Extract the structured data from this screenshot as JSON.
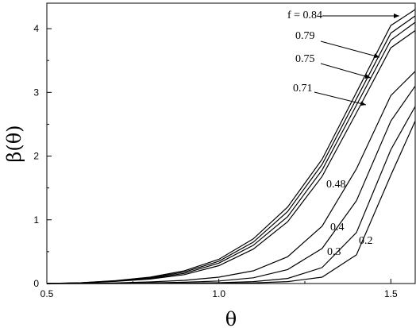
{
  "chart_data": {
    "type": "line",
    "title": "",
    "xlabel": "θ",
    "ylabel": "β(θ)",
    "xlim": [
      0.5,
      1.5708
    ],
    "ylim": [
      0,
      4.4
    ],
    "xticks": [
      0.5,
      1.0,
      1.5
    ],
    "xtick_labels": [
      "0.5",
      "1.0",
      "1.5"
    ],
    "yticks": [
      0,
      1,
      2,
      3,
      4
    ],
    "ytick_labels": [
      "0",
      "1",
      "2",
      "3",
      "4"
    ],
    "grid": false,
    "legend": "none",
    "series": [
      {
        "name": "f = 0.84",
        "x": [
          0.5,
          0.6,
          0.7,
          0.8,
          0.9,
          1.0,
          1.1,
          1.2,
          1.3,
          1.4,
          1.5,
          1.5708
        ],
        "values": [
          0.0,
          0.012,
          0.045,
          0.1,
          0.2,
          0.38,
          0.7,
          1.2,
          1.95,
          3.0,
          4.05,
          4.3
        ]
      },
      {
        "name": "0.79",
        "x": [
          0.5,
          0.6,
          0.7,
          0.8,
          0.9,
          1.0,
          1.1,
          1.2,
          1.3,
          1.4,
          1.5,
          1.5708
        ],
        "values": [
          0.0,
          0.011,
          0.042,
          0.09,
          0.18,
          0.35,
          0.65,
          1.13,
          1.87,
          2.9,
          3.93,
          4.2
        ]
      },
      {
        "name": "0.75",
        "x": [
          0.5,
          0.6,
          0.7,
          0.8,
          0.9,
          1.0,
          1.1,
          1.2,
          1.3,
          1.4,
          1.5,
          1.5708
        ],
        "values": [
          0.0,
          0.01,
          0.038,
          0.08,
          0.16,
          0.32,
          0.6,
          1.05,
          1.78,
          2.8,
          3.82,
          4.1
        ]
      },
      {
        "name": "0.71",
        "x": [
          0.5,
          0.6,
          0.7,
          0.8,
          0.9,
          1.0,
          1.1,
          1.2,
          1.3,
          1.4,
          1.5,
          1.5708
        ],
        "values": [
          0.0,
          0.009,
          0.034,
          0.07,
          0.14,
          0.28,
          0.54,
          0.97,
          1.68,
          2.68,
          3.7,
          3.97
        ]
      },
      {
        "name": "0.48",
        "x": [
          0.5,
          0.6,
          0.7,
          0.8,
          0.9,
          1.0,
          1.1,
          1.2,
          1.3,
          1.4,
          1.5,
          1.5708
        ],
        "values": [
          0.0,
          0.002,
          0.01,
          0.025,
          0.05,
          0.1,
          0.2,
          0.42,
          0.9,
          1.8,
          2.95,
          3.33
        ]
      },
      {
        "name": "0.4",
        "x": [
          0.5,
          0.6,
          0.7,
          0.8,
          0.9,
          1.0,
          1.1,
          1.2,
          1.3,
          1.4,
          1.5,
          1.5708
        ],
        "values": [
          0.0,
          0.001,
          0.004,
          0.01,
          0.02,
          0.04,
          0.09,
          0.22,
          0.55,
          1.3,
          2.55,
          3.1
        ]
      },
      {
        "name": "0.3",
        "x": [
          0.5,
          0.6,
          0.7,
          0.8,
          0.9,
          1.0,
          1.1,
          1.2,
          1.3,
          1.4,
          1.5,
          1.5708
        ],
        "values": [
          0.0,
          0.0,
          0.001,
          0.003,
          0.006,
          0.012,
          0.03,
          0.08,
          0.25,
          0.8,
          2.1,
          2.78
        ]
      },
      {
        "name": "0.2",
        "x": [
          0.5,
          0.6,
          0.7,
          0.8,
          0.9,
          1.0,
          1.1,
          1.2,
          1.3,
          1.4,
          1.5,
          1.5708
        ],
        "values": [
          0.0,
          0.0,
          0.0,
          0.001,
          0.002,
          0.004,
          0.01,
          0.03,
          0.1,
          0.45,
          1.7,
          2.55
        ]
      }
    ],
    "annotations": [
      {
        "text": "f = 0.84",
        "arrow": true
      },
      {
        "text": "0.79",
        "arrow": true
      },
      {
        "text": "0.75",
        "arrow": true
      },
      {
        "text": "0.71",
        "arrow": true
      },
      {
        "text": "0.48",
        "arrow": false
      },
      {
        "text": "0.4",
        "arrow": false
      },
      {
        "text": "0.3",
        "arrow": false
      },
      {
        "text": "0.2",
        "arrow": false
      }
    ]
  }
}
